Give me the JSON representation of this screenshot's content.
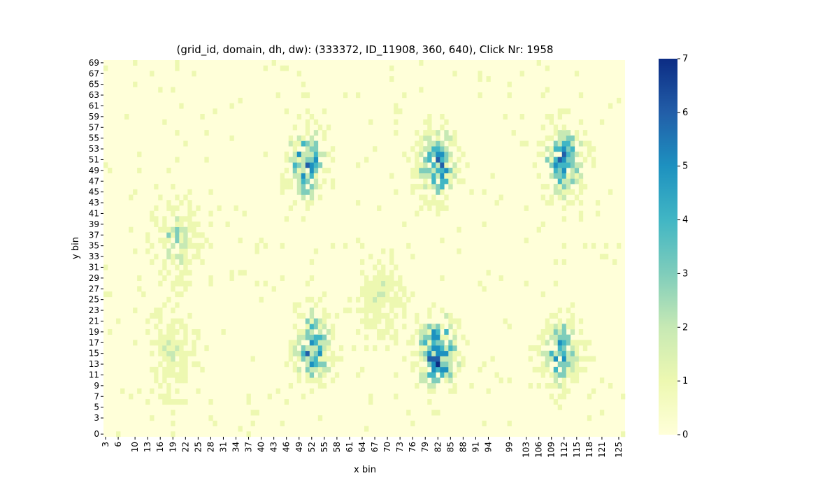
{
  "chart_data": {
    "type": "heatmap",
    "title": "(grid_id, domain, dh, dw): (333372, ID_11908, 360, 640), Click Nr: 1958",
    "xlabel": "x bin",
    "ylabel": "y bin",
    "x_range": [
      3,
      126
    ],
    "y_range": [
      0,
      69
    ],
    "x_tick_labels": [
      "3",
      "6",
      "10",
      "13",
      "16",
      "19",
      "22",
      "25",
      "28",
      "31",
      "34",
      "37",
      "40",
      "43",
      "46",
      "49",
      "52",
      "55",
      "58",
      "61",
      "64",
      "67",
      "70",
      "73",
      "76",
      "79",
      "82",
      "85",
      "88",
      "91",
      "94",
      "99",
      "103",
      "106",
      "109",
      "112",
      "115",
      "118",
      "121",
      "125"
    ],
    "y_tick_labels": [
      "0",
      "3",
      "5",
      "7",
      "9",
      "11",
      "13",
      "15",
      "17",
      "19",
      "21",
      "23",
      "25",
      "27",
      "29",
      "31",
      "33",
      "35",
      "37",
      "39",
      "41",
      "43",
      "45",
      "47",
      "49",
      "51",
      "53",
      "55",
      "57",
      "59",
      "61",
      "63",
      "65",
      "67",
      "69"
    ],
    "colorbar": {
      "min": 0,
      "max": 7,
      "ticks": [
        "0",
        "1",
        "2",
        "3",
        "4",
        "5",
        "6",
        "7"
      ],
      "colormap": "YlGnBu"
    },
    "colors": [
      "#ffffd9",
      "#edf8b1",
      "#c7e9b4",
      "#7fcdbb",
      "#41b6c4",
      "#1d91c0",
      "#225ea8",
      "#0c2c84"
    ],
    "clusters": [
      {
        "x": 51,
        "y": 50,
        "peak": 6
      },
      {
        "x": 52,
        "y": 16,
        "peak": 6
      },
      {
        "x": 82,
        "y": 50,
        "peak": 6
      },
      {
        "x": 82,
        "y": 15,
        "peak": 7
      },
      {
        "x": 112,
        "y": 51,
        "peak": 6
      },
      {
        "x": 111,
        "y": 15,
        "peak": 5
      },
      {
        "x": 20,
        "y": 36,
        "peak": 3
      },
      {
        "x": 19,
        "y": 15,
        "peak": 2
      },
      {
        "x": 68,
        "y": 25,
        "peak": 2
      }
    ]
  }
}
